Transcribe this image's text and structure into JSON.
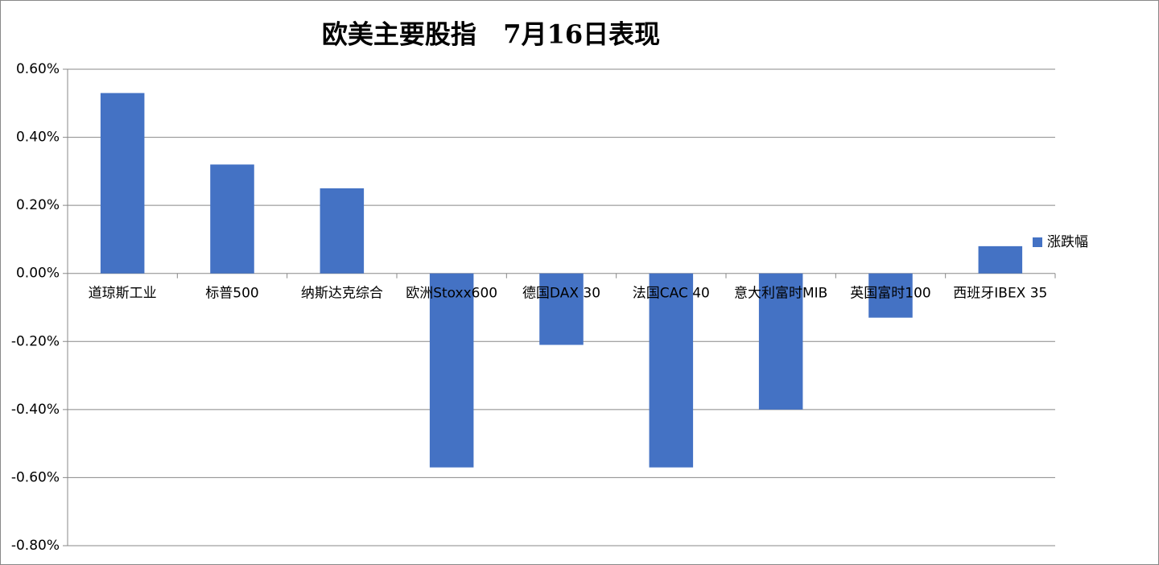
{
  "chart_data": {
    "type": "bar",
    "title": "欧美主要股指   7月16日表现",
    "categories": [
      "道琼斯工业",
      "标普500",
      "纳斯达克综合",
      "欧洲Stoxx600",
      "德国DAX 30",
      "法国CAC 40",
      "意大利富时MIB",
      "英国富时100",
      "西班牙IBEX 35"
    ],
    "series": [
      {
        "name": "涨跌幅",
        "color": "#4472c4",
        "values": [
          0.53,
          0.32,
          0.25,
          -0.57,
          -0.21,
          -0.57,
          -0.4,
          -0.13,
          0.08
        ]
      }
    ],
    "ylim": [
      -0.8,
      0.6
    ],
    "yticks": [
      {
        "value": -0.8,
        "label": "-0.80%"
      },
      {
        "value": -0.6,
        "label": "-0.60%"
      },
      {
        "value": -0.4,
        "label": "-0.40%"
      },
      {
        "value": -0.2,
        "label": "-0.20%"
      },
      {
        "value": 0,
        "label": "0.00%"
      },
      {
        "value": 0.2,
        "label": "0.20%"
      },
      {
        "value": 0.4,
        "label": "0.40%"
      },
      {
        "value": 0.6,
        "label": "0.60%"
      }
    ],
    "grid": true,
    "legend": "right"
  }
}
